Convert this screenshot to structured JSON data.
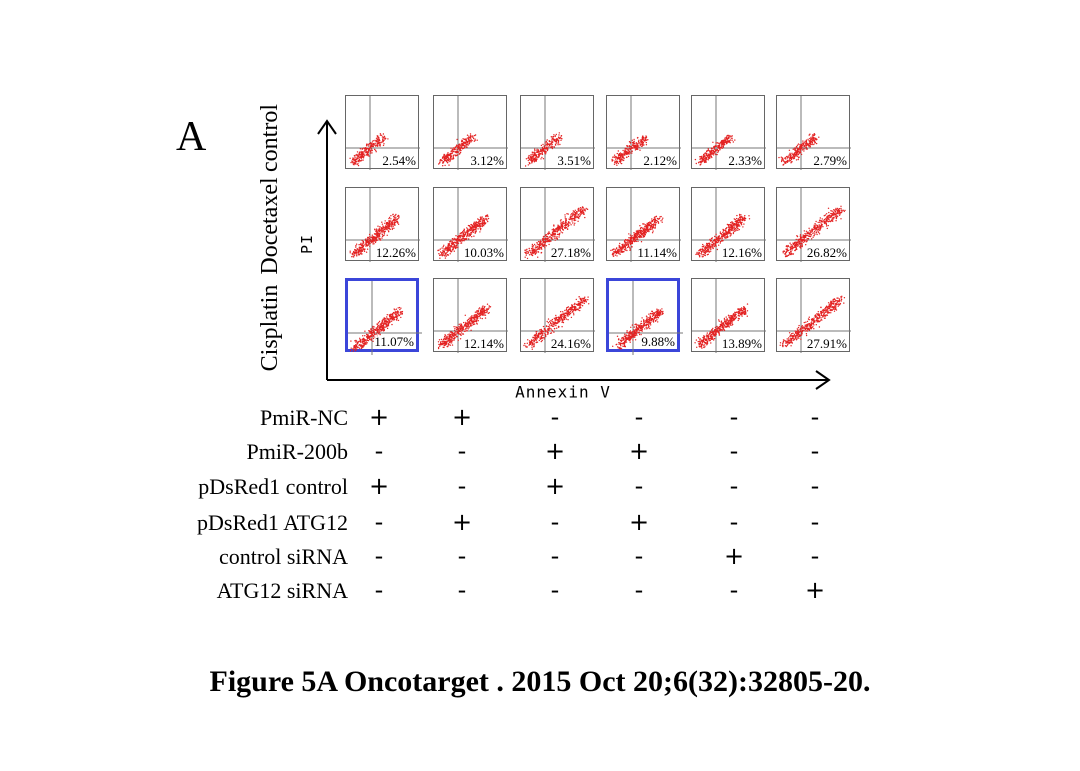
{
  "panel_letter": "A",
  "row_labels": [
    "control",
    "Docetaxel",
    "Cisplatin"
  ],
  "y_axis_label": "PI",
  "x_axis_label": "Annexin V",
  "plot_percentages": [
    [
      "2.54%",
      "3.12%",
      "3.51%",
      "2.12%",
      "2.33%",
      "2.79%"
    ],
    [
      "12.26%",
      "10.03%",
      "27.18%",
      "11.14%",
      "12.16%",
      "26.82%"
    ],
    [
      "11.07%",
      "12.14%",
      "24.16%",
      "9.88%",
      "13.89%",
      "27.91%"
    ]
  ],
  "highlighted_plots": [
    [
      2,
      0
    ],
    [
      2,
      3
    ]
  ],
  "highlight_color": "#3b46d9",
  "dot_color": "#e32222",
  "condition_labels": [
    "PmiR-NC",
    "PmiR-200b",
    "pDsRed1 control",
    "pDsRed1 ATG12",
    "control siRNA",
    "ATG12 siRNA"
  ],
  "condition_signs": [
    [
      "+",
      "+",
      "-",
      "-",
      "-",
      "-"
    ],
    [
      "-",
      "-",
      "+",
      "+",
      "-",
      "-"
    ],
    [
      "+",
      "-",
      "+",
      "-",
      "-",
      "-"
    ],
    [
      "-",
      "+",
      "-",
      "+",
      "-",
      "-"
    ],
    [
      "-",
      "-",
      "-",
      "-",
      "+",
      "-"
    ],
    [
      "-",
      "-",
      "-",
      "-",
      "-",
      "+"
    ]
  ],
  "caption": "Figure 5A Oncotarget . 2015 Oct 20;6(32):32805-20."
}
